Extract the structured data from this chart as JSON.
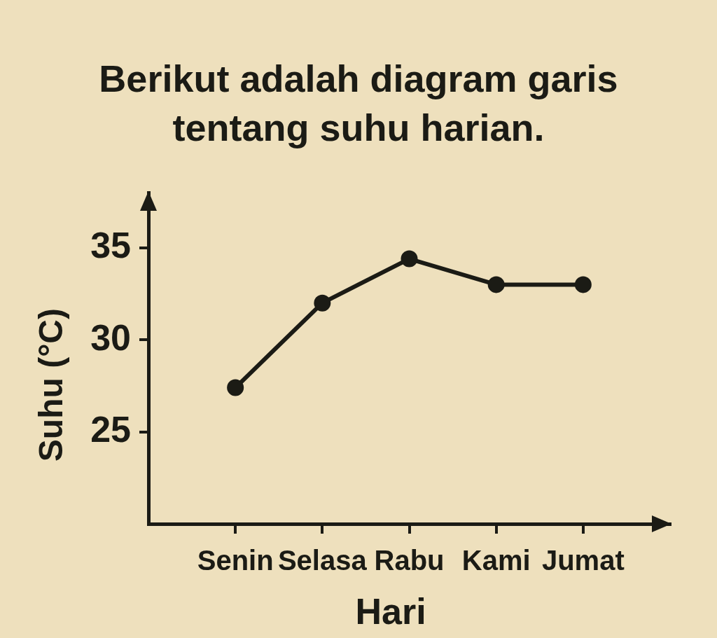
{
  "chart_data": {
    "type": "line",
    "title": "Berikut adalah diagram garis tentang suhu harian.",
    "xlabel": "Hari",
    "ylabel": "Suhu (°C)",
    "categories": [
      "Senin",
      "Selasa",
      "Rabu",
      "Kami",
      "Jumat"
    ],
    "values": [
      27.4,
      32,
      34.4,
      33,
      33
    ],
    "color": "#1b1b15",
    "ylim": [
      20,
      38
    ],
    "yticks": [
      25,
      30,
      35
    ],
    "marker": "circle",
    "line_style": "solid"
  }
}
